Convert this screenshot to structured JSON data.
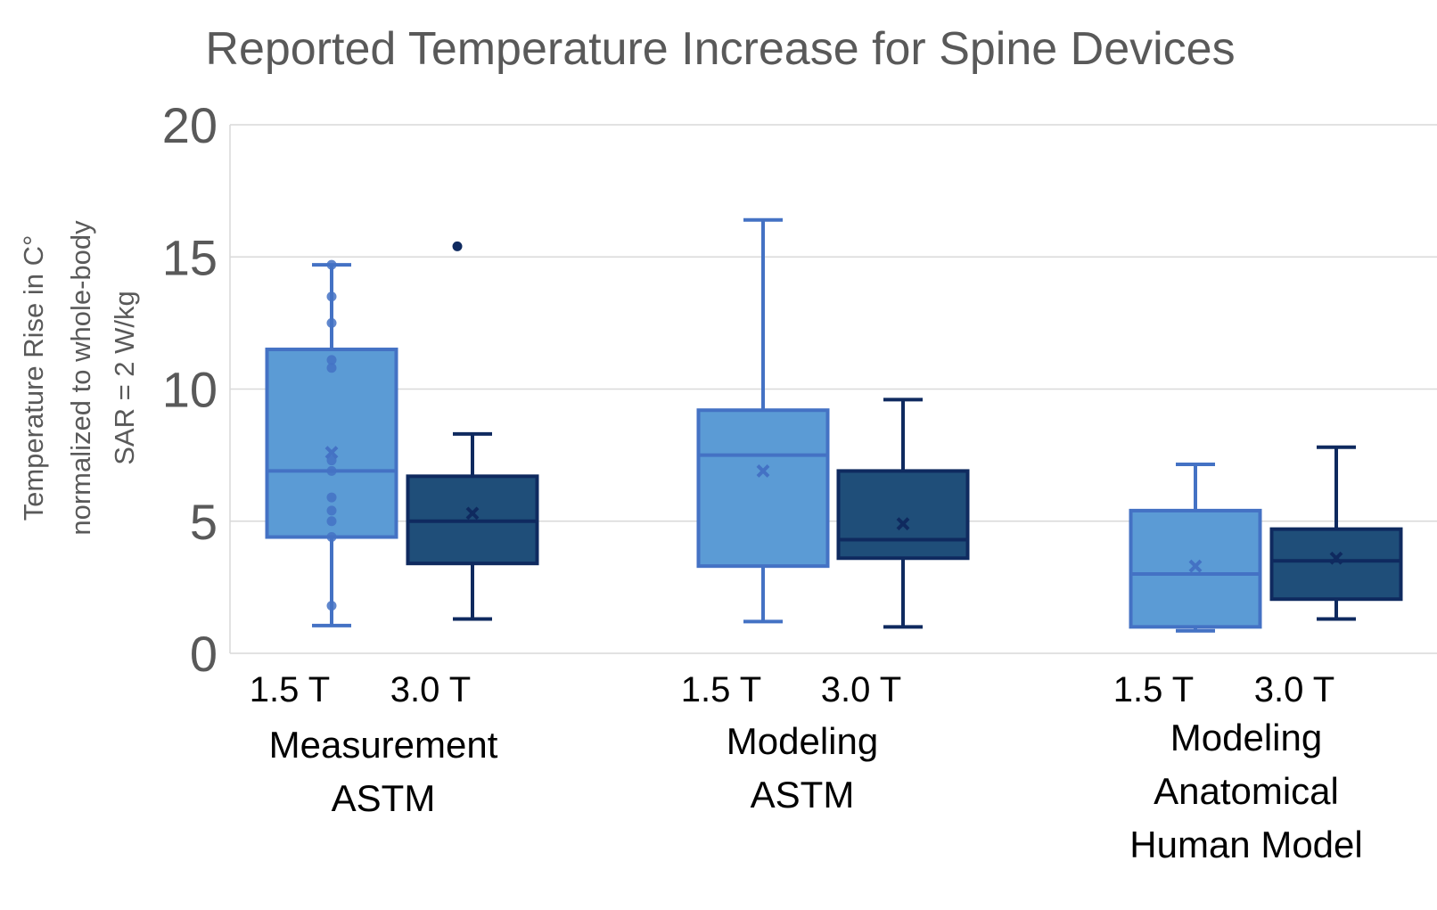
{
  "chart_data": {
    "type": "box",
    "title": "Reported Temperature Increase for Spine Devices",
    "ylabel_lines": [
      "Temperature Rise in C°",
      "normalized to whole-body",
      "SAR = 2 W/kg"
    ],
    "ylim": [
      0,
      20
    ],
    "yticks": [
      0,
      5,
      10,
      15,
      20
    ],
    "grid": true,
    "colors": {
      "t15_fill": "#5b9bd5",
      "t15_stroke": "#4472c4",
      "t30_fill": "#1f4e79",
      "t30_stroke": "#0f2a5f",
      "grid": "#d9d9d9",
      "axis_text": "#595959",
      "label_text": "#000000"
    },
    "groups": [
      {
        "label_lines": [
          "Measurement",
          "ASTM"
        ],
        "boxes": [
          {
            "field": "1.5 T",
            "min": 1.05,
            "q1": 4.4,
            "median": 6.9,
            "q3": 11.5,
            "max": 14.7,
            "mean": 7.6,
            "points": [
              1.8,
              4.4,
              5.0,
              5.4,
              5.9,
              6.9,
              7.3,
              10.8,
              11.1,
              12.5,
              13.5,
              14.7
            ],
            "outliers": []
          },
          {
            "field": "3.0 T",
            "min": 1.3,
            "q1": 3.4,
            "median": 5.0,
            "q3": 6.7,
            "max": 8.3,
            "mean": 5.3,
            "points": [],
            "outliers": [
              15.4
            ]
          }
        ]
      },
      {
        "label_lines": [
          "Modeling",
          "ASTM"
        ],
        "boxes": [
          {
            "field": "1.5 T",
            "min": 1.2,
            "q1": 3.3,
            "median": 7.5,
            "q3": 9.2,
            "max": 16.4,
            "mean": 6.9,
            "points": [],
            "outliers": []
          },
          {
            "field": "3.0 T",
            "min": 1.0,
            "q1": 3.6,
            "median": 4.3,
            "q3": 6.9,
            "max": 9.6,
            "mean": 4.9,
            "points": [],
            "outliers": []
          }
        ]
      },
      {
        "label_lines": [
          "Modeling",
          "Anatomical",
          "Human Model"
        ],
        "boxes": [
          {
            "field": "1.5 T",
            "min": 0.85,
            "q1": 1.0,
            "median": 3.0,
            "q3": 5.4,
            "max": 7.15,
            "mean": 3.3,
            "points": [],
            "outliers": []
          },
          {
            "field": "3.0 T",
            "min": 1.3,
            "q1": 2.05,
            "median": 3.5,
            "q3": 4.7,
            "max": 7.8,
            "mean": 3.6,
            "points": [],
            "outliers": []
          }
        ]
      }
    ]
  }
}
